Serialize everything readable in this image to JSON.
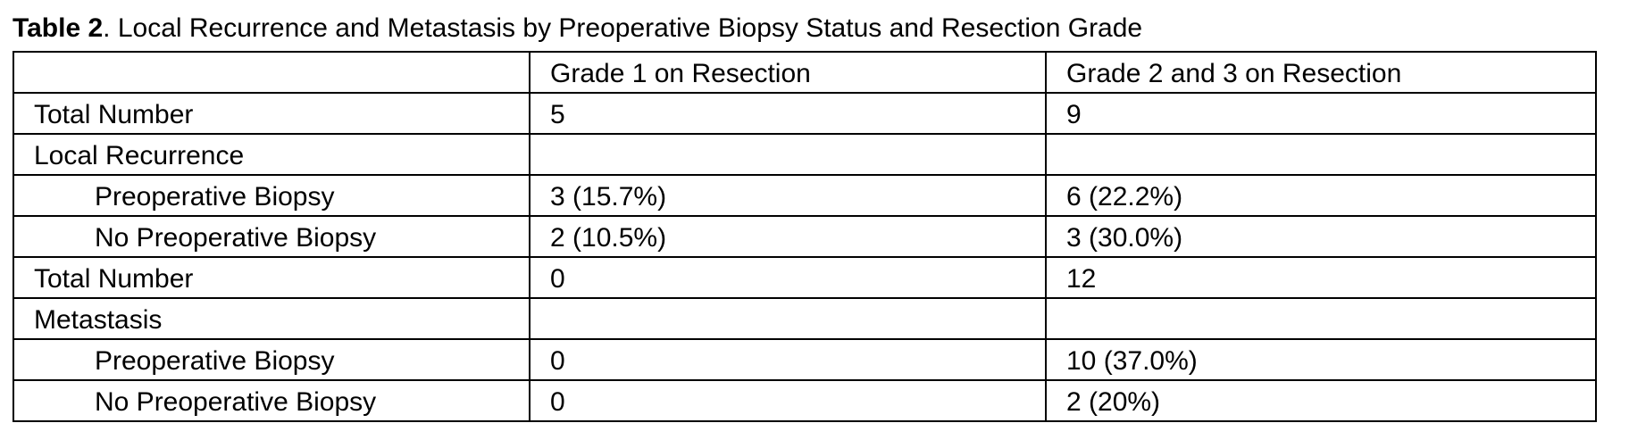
{
  "caption": {
    "label": "Table 2",
    "text": ". Local Recurrence and Metastasis by Preoperative Biopsy Status and Resection Grade"
  },
  "table": {
    "columns": [
      "",
      "Grade 1 on Resection",
      "Grade 2 and 3 on Resection"
    ],
    "rows": [
      {
        "label": "Total Number",
        "indent": false,
        "grade1": "5",
        "grade23": "9"
      },
      {
        "label": "Local Recurrence",
        "indent": false,
        "grade1": "",
        "grade23": ""
      },
      {
        "label": "Preoperative Biopsy",
        "indent": true,
        "grade1": "3 (15.7%)",
        "grade23": "6 (22.2%)"
      },
      {
        "label": "No Preoperative Biopsy",
        "indent": true,
        "grade1": "2 (10.5%)",
        "grade23": "3 (30.0%)"
      },
      {
        "label": "Total Number",
        "indent": false,
        "grade1": "0",
        "grade23": "12"
      },
      {
        "label": "Metastasis",
        "indent": false,
        "grade1": "",
        "grade23": ""
      },
      {
        "label": "Preoperative Biopsy",
        "indent": true,
        "grade1": "0",
        "grade23": "10 (37.0%)"
      },
      {
        "label": "No Preoperative Biopsy",
        "indent": true,
        "grade1": "0",
        "grade23": "2 (20%)"
      }
    ]
  }
}
